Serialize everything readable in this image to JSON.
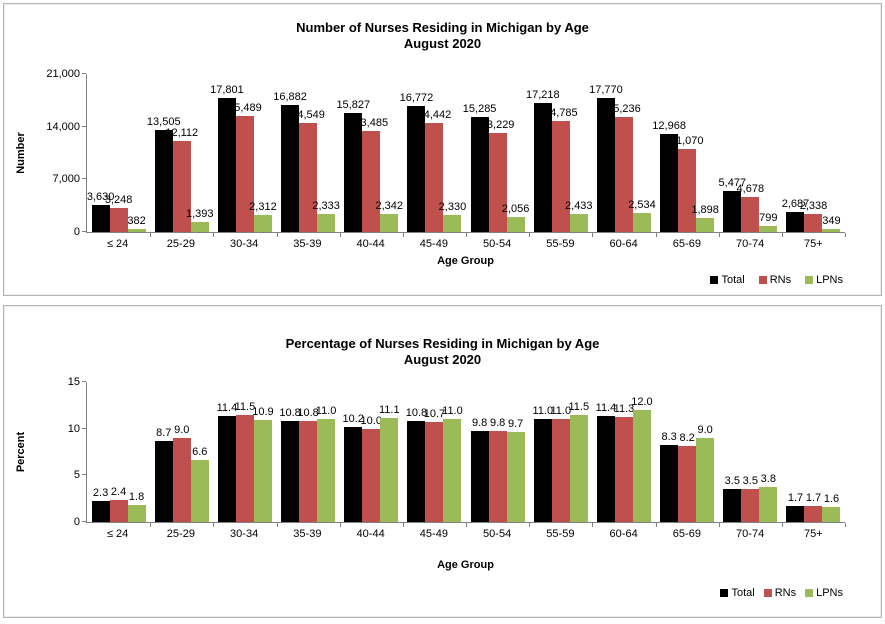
{
  "chart_data": [
    {
      "type": "bar",
      "title": "Number of Nurses Residing in Michigan by Age",
      "subtitle": "August 2020",
      "xlabel": "Age Group",
      "ylabel": "Number",
      "ylim": [
        0,
        21000
      ],
      "ytick_values": [
        0,
        7000,
        14000,
        21000
      ],
      "ytick_labels": [
        "0",
        "7,000",
        "14,000",
        "21,000"
      ],
      "grid": false,
      "legend_position": "bottom-right",
      "categories": [
        "≤ 24",
        "25-29",
        "30-34",
        "35-39",
        "40-44",
        "45-49",
        "50-54",
        "55-59",
        "60-64",
        "65-69",
        "70-74",
        "75+"
      ],
      "series": [
        {
          "name": "Total",
          "color": "#000000",
          "values": [
            3630,
            13505,
            17801,
            16882,
            15827,
            16772,
            15285,
            17218,
            17770,
            12968,
            5477,
            2687
          ],
          "labels": [
            "3,630",
            "13,505",
            "17,801",
            "16,882",
            "15,827",
            "16,772",
            "15,285",
            "17,218",
            "17,770",
            "12,968",
            "5,477",
            "2,687"
          ]
        },
        {
          "name": "RNs",
          "color": "#C0504D",
          "values": [
            3248,
            12112,
            15489,
            14549,
            13485,
            14442,
            13229,
            14785,
            15236,
            11070,
            4678,
            2338
          ],
          "labels": [
            "3,248",
            "12,112",
            "15,489",
            "14,549",
            "13,485",
            "14,442",
            "13,229",
            "14,785",
            "15,236",
            "11,070",
            "4,678",
            "2,338"
          ]
        },
        {
          "name": "LPNs",
          "color": "#9BBB59",
          "values": [
            382,
            1393,
            2312,
            2333,
            2342,
            2330,
            2056,
            2433,
            2534,
            1898,
            799,
            349
          ],
          "labels": [
            "382",
            "1,393",
            "2,312",
            "2,333",
            "2,342",
            "2,330",
            "2,056",
            "2,433",
            "2,534",
            "1,898",
            "799",
            "349"
          ]
        }
      ]
    },
    {
      "type": "bar",
      "title": "Percentage of Nurses Residing in Michigan by Age",
      "subtitle": "August 2020",
      "xlabel": "Age Group",
      "ylabel": "Percent",
      "ylim": [
        0,
        15
      ],
      "ytick_values": [
        0,
        5,
        10,
        15
      ],
      "ytick_labels": [
        "0",
        "5",
        "10",
        "15"
      ],
      "grid": false,
      "legend_position": "bottom-right",
      "categories": [
        "≤ 24",
        "25-29",
        "30-34",
        "35-39",
        "40-44",
        "45-49",
        "50-54",
        "55-59",
        "60-64",
        "65-69",
        "70-74",
        "75+"
      ],
      "series": [
        {
          "name": "Total",
          "color": "#000000",
          "values": [
            2.3,
            8.7,
            11.4,
            10.8,
            10.2,
            10.8,
            9.8,
            11.0,
            11.4,
            8.3,
            3.5,
            1.7
          ],
          "labels": [
            "2.3",
            "8.7",
            "11.4",
            "10.8",
            "10.2",
            "10.8",
            "9.8",
            "11.0",
            "11.4",
            "8.3",
            "3.5",
            "1.7"
          ]
        },
        {
          "name": "RNs",
          "color": "#C0504D",
          "values": [
            2.4,
            9.0,
            11.5,
            10.8,
            10.0,
            10.7,
            9.8,
            11.0,
            11.3,
            8.2,
            3.5,
            1.7
          ],
          "labels": [
            "2.4",
            "9.0",
            "11.5",
            "10.8",
            "10.0",
            "10.7",
            "9.8",
            "11.0",
            "11.3",
            "8.2",
            "3.5",
            "1.7"
          ]
        },
        {
          "name": "LPNs",
          "color": "#9BBB59",
          "values": [
            1.8,
            6.6,
            10.9,
            11.0,
            11.1,
            11.0,
            9.7,
            11.5,
            12.0,
            9.0,
            3.8,
            1.6
          ],
          "labels": [
            "1.8",
            "6.6",
            "10.9",
            "11.0",
            "11.1",
            "11.0",
            "9.7",
            "11.5",
            "12.0",
            "9.0",
            "3.8",
            "1.6"
          ]
        }
      ]
    }
  ]
}
